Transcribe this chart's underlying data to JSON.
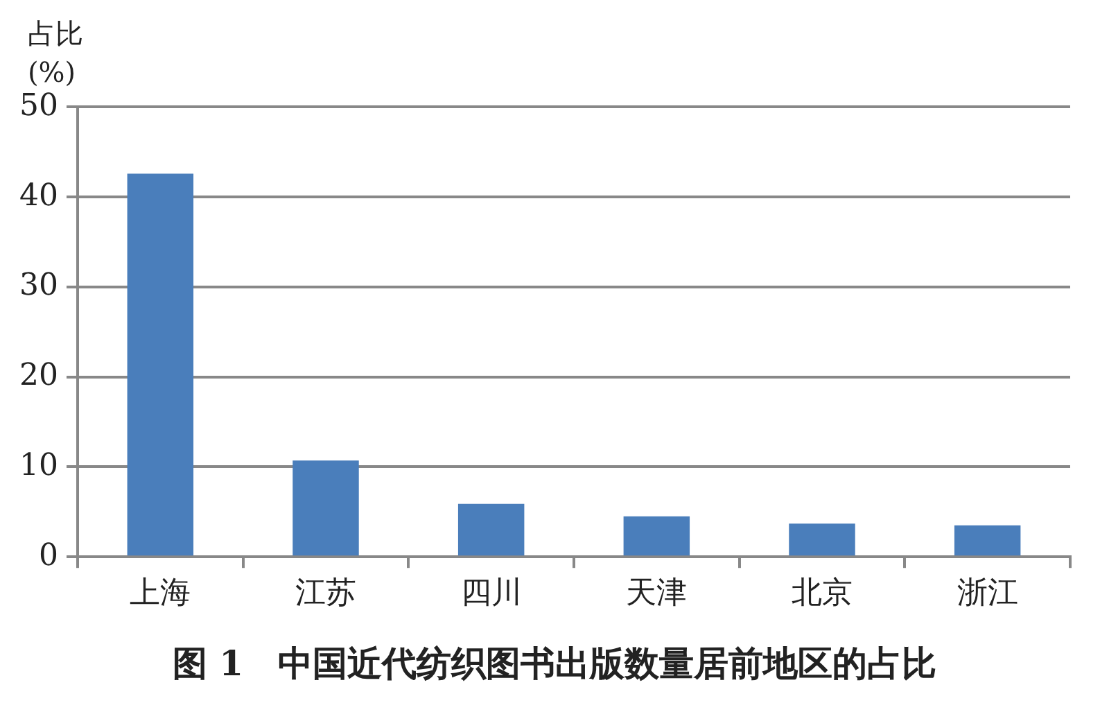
{
  "chart_data": {
    "type": "bar",
    "title": "图 1　中国近代纺织图书出版数量居前地区的占比",
    "ylabel": "占比 (%)",
    "categories": [
      "上海",
      "江苏",
      "四川",
      "天津",
      "北京",
      "浙江"
    ],
    "values": [
      42.6,
      10.7,
      5.9,
      4.5,
      3.7,
      3.5
    ],
    "color": "#4a7ebb",
    "ylim": [
      0,
      50
    ],
    "yticks": [
      0,
      10,
      20,
      30,
      40,
      50
    ],
    "grid": "y"
  }
}
